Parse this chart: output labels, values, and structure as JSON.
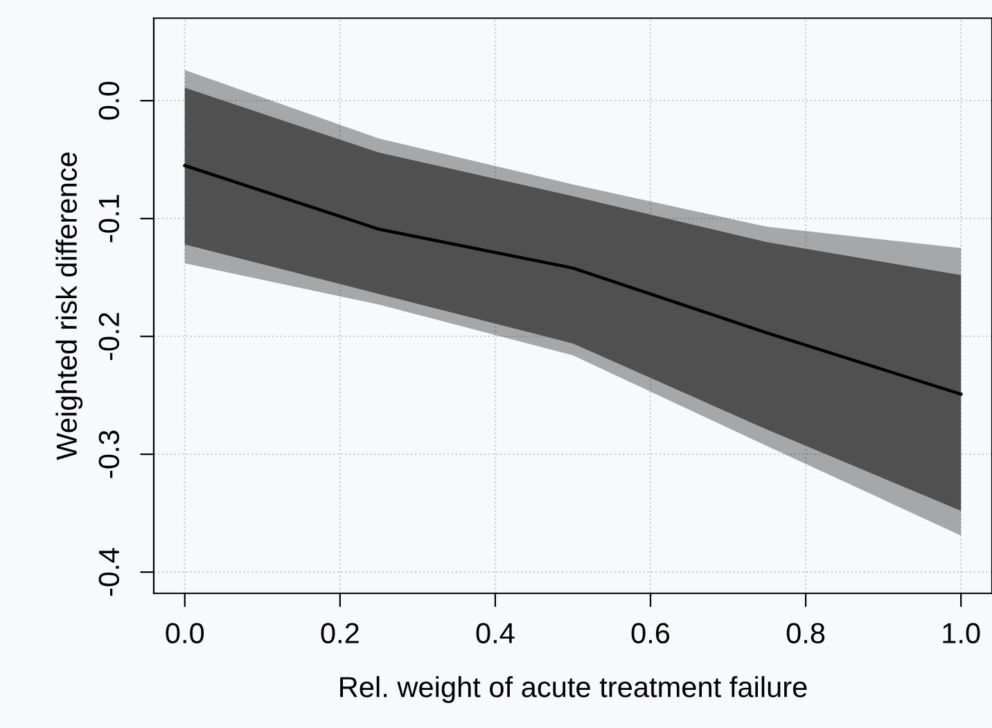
{
  "chart_data": {
    "type": "line",
    "xlabel": "Rel. weight of acute treatment failure",
    "ylabel": "Weighted risk difference",
    "x": [
      0,
      0.25,
      0.5,
      0.75,
      1
    ],
    "series": [
      {
        "type": "line",
        "color": "#000000",
        "values": [
          -0.055,
          -0.109,
          -0.142,
          -0.197,
          -0.249
        ],
        "lower": [
          -0.138,
          -0.173,
          -0.216,
          -0.293,
          -0.369
        ],
        "upper": [
          0.026,
          -0.032,
          -0.071,
          -0.107,
          -0.125
        ]
      },
      {
        "type": "line",
        "color": "#505050",
        "values": [
          null,
          null,
          null,
          null,
          null
        ],
        "lower": [
          -0.122,
          -0.164,
          -0.206,
          -0.279,
          -0.348
        ],
        "upper": [
          0.011,
          -0.044,
          -0.081,
          -0.12,
          -0.148
        ]
      }
    ],
    "xlim": [
      -0.04,
      1.04
    ],
    "ylim": [
      -0.418,
      0.07
    ],
    "xticks": [
      {
        "value": 0,
        "label": "0.0"
      },
      0.2,
      0.4,
      0.6,
      0.8,
      {
        "value": 1,
        "label": "1.0"
      }
    ],
    "yticks": [
      {
        "value": -0.4,
        "label": "-0.4"
      },
      {
        "value": -0.3,
        "label": "-0.3"
      },
      {
        "value": -0.2,
        "label": "-0.2"
      },
      {
        "value": -0.1,
        "label": "-0.1"
      },
      {
        "value": 0,
        "label": "0.0"
      }
    ],
    "grid": true,
    "line_style": "solid",
    "marker": "none"
  }
}
